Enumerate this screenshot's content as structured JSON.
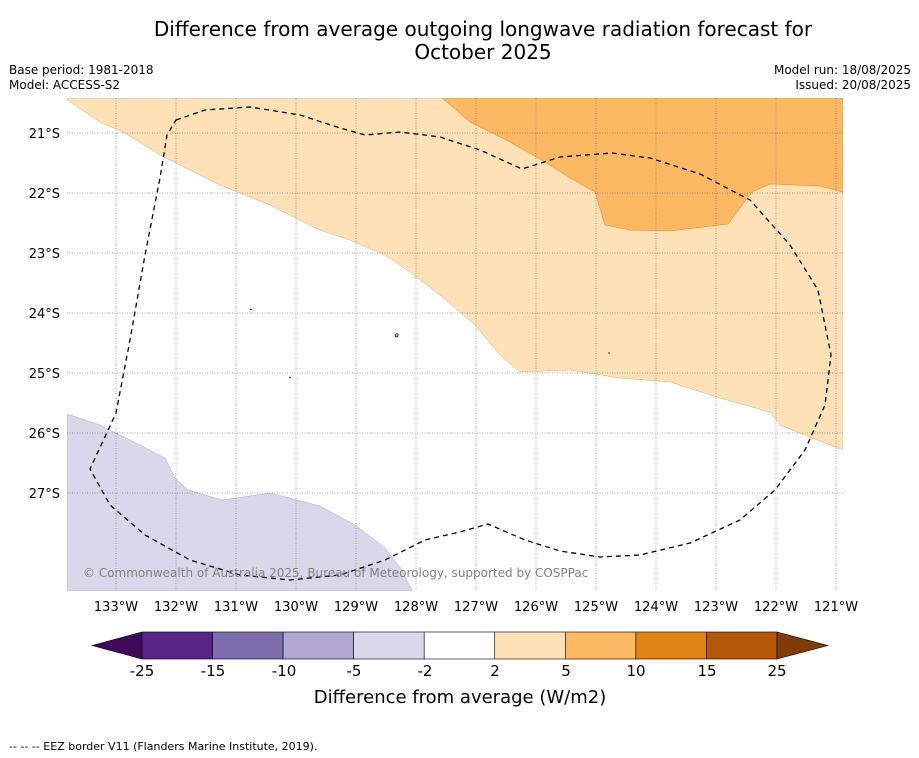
{
  "title_line1": "Difference from average outgoing longwave radiation forecast for",
  "title_line2": "October 2025",
  "base_period": "Base period: 1981-2018",
  "model": "Model: ACCESS-S2",
  "model_run": "Model run: 18/08/2025",
  "issued": "Issued: 20/08/2025",
  "copyright": "© Commonwealth of Australia 2025, Bureau of Meteorology, supported by COSPPac",
  "footer": "--  --  -- EEZ border V11 (Flanders Marine Institute, 2019).",
  "map": {
    "lat_labels": [
      "21°S",
      "22°S",
      "23°S",
      "24°S",
      "25°S",
      "26°S",
      "27°S"
    ],
    "lon_labels": [
      "133°W",
      "132°W",
      "131°W",
      "130°W",
      "129°W",
      "128°W",
      "127°W",
      "126°W",
      "125°W",
      "124°W",
      "123°W",
      "122°W",
      "121°W"
    ],
    "lat_range": [
      -28.5,
      -20.4
    ],
    "lon_range": [
      -133.8,
      -120.9
    ]
  },
  "colorbar": {
    "title": "Difference from average (W/m2)",
    "ticks": [
      "-25",
      "-15",
      "-10",
      "-5",
      "-2",
      "2",
      "5",
      "10",
      "15",
      "25"
    ],
    "colors": [
      "#3f0a5a",
      "#562586",
      "#7d6eab",
      "#b0a8d2",
      "#d8d8ea",
      "#ffffff",
      "#fee1b6",
      "#fdb863",
      "#e08214",
      "#b35806",
      "#7f3b08"
    ]
  }
}
